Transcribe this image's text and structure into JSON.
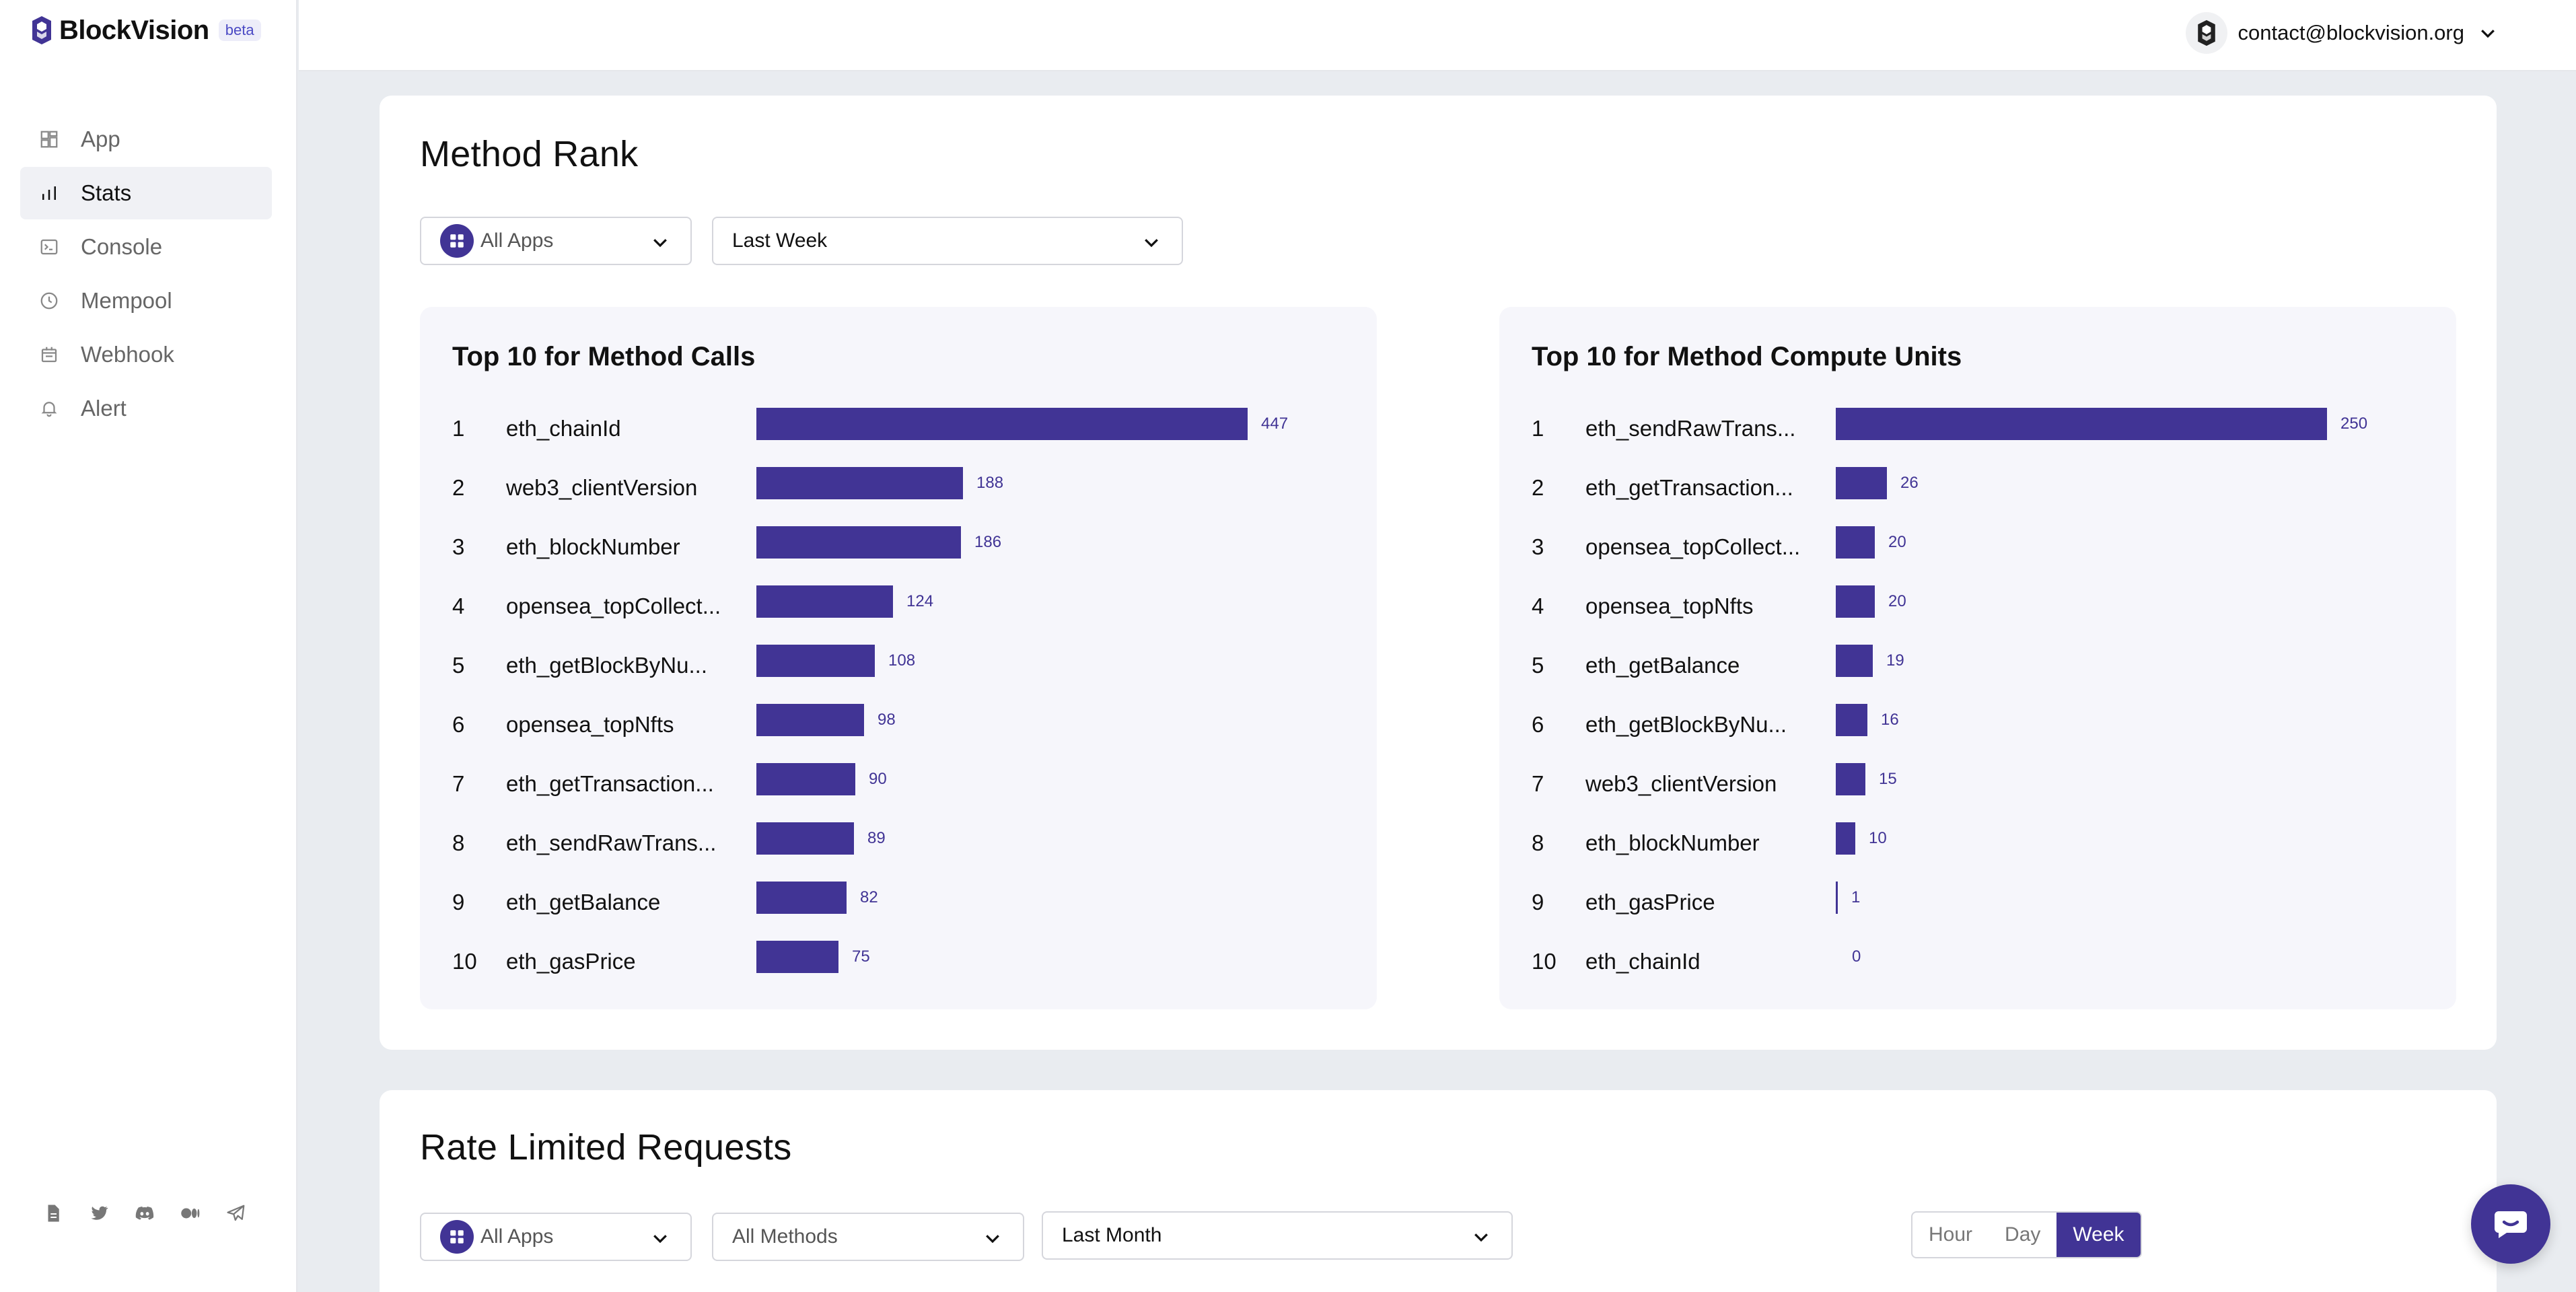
{
  "brand": {
    "name": "BlockVision",
    "badge": "beta"
  },
  "nav": [
    {
      "label": "App",
      "icon": "app-icon",
      "active": false
    },
    {
      "label": "Stats",
      "icon": "chart-icon",
      "active": true
    },
    {
      "label": "Console",
      "icon": "terminal-icon",
      "active": false
    },
    {
      "label": "Mempool",
      "icon": "clock-icon",
      "active": false
    },
    {
      "label": "Webhook",
      "icon": "webhook-icon",
      "active": false
    },
    {
      "label": "Alert",
      "icon": "bell-icon",
      "active": false
    }
  ],
  "social": [
    "docs-icon",
    "twitter-icon",
    "discord-icon",
    "medium-icon",
    "telegram-icon"
  ],
  "header": {
    "email": "contact@blockvision.org"
  },
  "method_rank": {
    "title": "Method Rank",
    "app_filter": "All Apps",
    "period_filter": "Last Week",
    "accent": "#413495"
  },
  "chart_data": [
    {
      "type": "bar",
      "title": "Top 10 for Method Calls",
      "ranks": [
        1,
        2,
        3,
        4,
        5,
        6,
        7,
        8,
        9,
        10
      ],
      "categories": [
        "eth_chainId",
        "web3_clientVersion",
        "eth_blockNumber",
        "opensea_topCollect...",
        "eth_getBlockByNu...",
        "opensea_topNfts",
        "eth_getTransaction...",
        "eth_sendRawTrans...",
        "eth_getBalance",
        "eth_gasPrice"
      ],
      "values": [
        447,
        188,
        186,
        124,
        108,
        98,
        90,
        89,
        82,
        75
      ],
      "orientation": "horizontal"
    },
    {
      "type": "bar",
      "title": "Top 10 for Method Compute Units",
      "ranks": [
        1,
        2,
        3,
        4,
        5,
        6,
        7,
        8,
        9,
        10
      ],
      "categories": [
        "eth_sendRawTrans...",
        "eth_getTransaction...",
        "opensea_topCollect...",
        "opensea_topNfts",
        "eth_getBalance",
        "eth_getBlockByNu...",
        "web3_clientVersion",
        "eth_blockNumber",
        "eth_gasPrice",
        "eth_chainId"
      ],
      "values": [
        250,
        26,
        20,
        20,
        19,
        16,
        15,
        10,
        1,
        0
      ],
      "orientation": "horizontal"
    }
  ],
  "rate_limited": {
    "title": "Rate Limited Requests",
    "app_filter": "All Apps",
    "method_filter": "All Methods",
    "period_filter": "Last Month",
    "granularity": [
      "Hour",
      "Day",
      "Week"
    ],
    "granularity_selected": "Week"
  }
}
